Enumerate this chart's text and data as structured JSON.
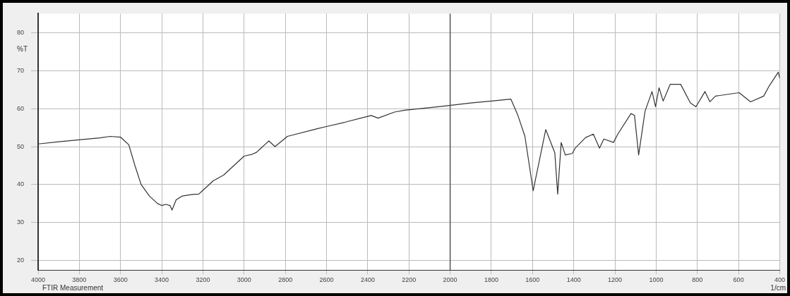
{
  "chart_data": {
    "type": "line",
    "xlabel": "1/cm",
    "ylabel": "%T",
    "annotations": [
      "FTIR Measurement"
    ],
    "xlim": [
      4000,
      400
    ],
    "ylim": [
      17.5,
      85
    ],
    "xticks": [
      4000,
      3800,
      3600,
      3400,
      3200,
      3000,
      2800,
      2600,
      2400,
      2200,
      2000,
      1800,
      1600,
      1400,
      1200,
      1000,
      800,
      600,
      400
    ],
    "yticks": [
      20,
      30,
      40,
      50,
      60,
      70,
      80
    ],
    "grid": true,
    "legend": false,
    "marker": "none",
    "line_style": "solid",
    "ref_lines": [
      {
        "axis": "x",
        "value": 2000,
        "color": "#555555"
      }
    ],
    "series": [
      {
        "color": "#333333",
        "x": [
          4000,
          3900,
          3800,
          3700,
          3650,
          3600,
          3580,
          3560,
          3530,
          3500,
          3460,
          3420,
          3400,
          3380,
          3360,
          3350,
          3330,
          3300,
          3250,
          3220,
          3200,
          3150,
          3100,
          3050,
          3000,
          2960,
          2940,
          2920,
          2900,
          2880,
          2850,
          2790,
          2645,
          2600,
          2512,
          2383,
          2350,
          2270,
          2220,
          2055,
          1900,
          1800,
          1705,
          1671,
          1637,
          1597,
          1536,
          1492,
          1478,
          1461,
          1441,
          1407,
          1393,
          1342,
          1305,
          1275,
          1254,
          1207,
          1186,
          1122,
          1105,
          1085,
          1054,
          1020,
          1003,
          986,
          966,
          932,
          881,
          834,
          807,
          763,
          739,
          712,
          597,
          542,
          478,
          451,
          407,
          400
        ],
        "values": [
          50.7,
          51.3,
          51.8,
          52.3,
          52.7,
          52.5,
          51.5,
          50.5,
          45,
          40,
          37,
          35,
          34.5,
          34.8,
          34.5,
          33.3,
          36,
          37,
          37.4,
          37.5,
          38.5,
          41,
          42.5,
          45,
          47.5,
          48,
          48.5,
          49.5,
          50.5,
          51.5,
          50,
          52.7,
          54.7,
          55.3,
          56.4,
          58.2,
          57.5,
          59.1,
          59.6,
          60.5,
          61.5,
          62,
          62.5,
          58.2,
          52.7,
          38.4,
          54.5,
          48.4,
          37.5,
          51.1,
          47.8,
          48.2,
          49.6,
          52.4,
          53.3,
          49.6,
          52,
          51.1,
          53.3,
          58.7,
          58.2,
          47.8,
          59.3,
          64.5,
          60.5,
          65.5,
          62,
          66.4,
          66.4,
          61.5,
          60.5,
          64.5,
          61.8,
          63.3,
          64.2,
          61.8,
          63.3,
          66,
          69.6,
          68
        ]
      }
    ]
  }
}
